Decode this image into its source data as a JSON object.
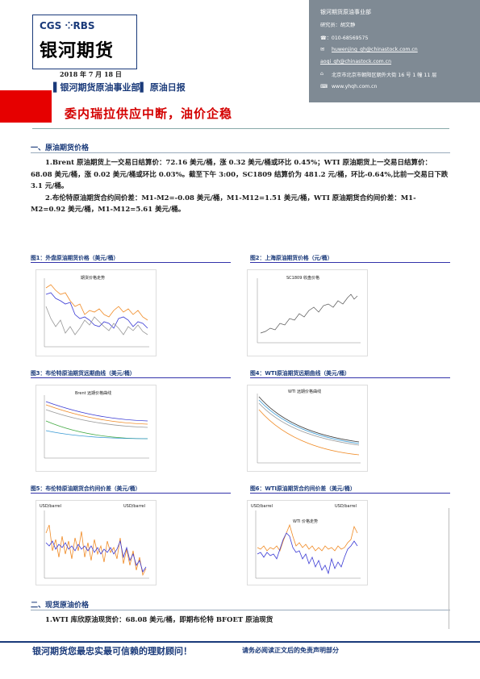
{
  "header": {
    "logo_brand": "CGS ⁘RBS",
    "logo_cn": "银河期货",
    "date": "2018 年 7 月 18 日",
    "dept": "▌银河期货原油事业部▌ 原油日报",
    "title": "委内瑞拉供应中断，油价企稳"
  },
  "contact": {
    "org": "银河期货原油事业部",
    "researcher": "研究员：胡文静",
    "phone": "☎：010-68569575",
    "email1": "huwenjing_qh@chinastock.com.cn",
    "email2": "aoqi_qh@chinastock.com.cn",
    "address": "北京市北京市朝阳区朝外大街 16 号 1 幢 11 层",
    "web": "www.yhqh.com.cn"
  },
  "section1": {
    "heading": "一、原油期货价格",
    "p1": "1.Brent 原油期货上一交易日结算价：72.16 美元/桶，涨 0.32 美元/桶或环比 0.45%；WTI 原油期货上一交易日结算价：68.08 美元/桶，涨 0.02 美元/桶或环比 0.03%。截至下午 3:00，SC1809 结算价为 481.2 元/桶，环比-0.64%,比前一交易日下跌 3.1 元/桶。",
    "p2": "2.布伦特原油期货合约间价差：M1-M2=-0.08 美元/桶，M1-M12=1.51 美元/桶，WTI 原油期货合约间价差：M1-M2=0.92 美元/桶，M1-M12=5.61 美元/桶。"
  },
  "figures": {
    "f1": "图1：外盘原油期货价格（美元/桶）",
    "f2": "图2：上海原油期货价格（元/桶）",
    "f3": "图3：布伦特原油期货远期曲线（美元/桶）",
    "f4": "图4：WTI原油期货远期曲线（美元/桶）",
    "f5": "图5：布伦特原油期货合约间价差（美元/桶）",
    "f6": "图6：WTI原油期货合约间价差（美元/桶）",
    "c1_title": "期货价格走势",
    "c2_title": "SC1809 收盘价格",
    "c3_title": "Brent 远期价格曲线",
    "c4_title": "WTI 远期价格曲线",
    "c5_unit_l": "USD/barrel",
    "c5_unit_r": "USD/barrel",
    "c6_unit_l": "USD/barrel",
    "c6_unit_r": "USD/barrel",
    "c6_label": "WTI 价格走势"
  },
  "section2": {
    "heading": "二、现货原油价格",
    "p1": "1.WTI 库欣原油现货价：68.08 美元/桶，即期布伦特 BFOET 原油现货"
  },
  "footer": {
    "left": "银河期货您最忠实最可信赖的理财顾问！",
    "right": "请务必阅读正文后的免责声明部分"
  },
  "colors": {
    "brand_blue": "#1a3a7a",
    "accent_red": "#e60000",
    "contact_bg": "#7f8a94"
  }
}
